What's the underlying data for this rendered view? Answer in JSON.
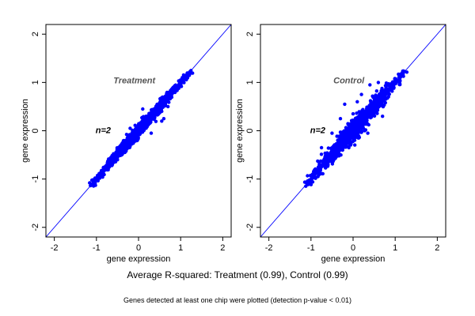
{
  "chart_data": [
    {
      "type": "scatter",
      "title": "Treatment",
      "annotation": "n=2",
      "xlabel": "gene expression",
      "ylabel": "gene expression",
      "xlim": [
        -2.2,
        2.2
      ],
      "ylim": [
        -2.2,
        2.2
      ],
      "xticks": [
        -2,
        -1,
        0,
        1,
        2
      ],
      "yticks": [
        -2,
        -1,
        0,
        1,
        2
      ],
      "reference_line": "y = x",
      "point_color": "#0000ff",
      "line_color": "#0000ff",
      "points_summary": {
        "x_range": [
          -1.15,
          1.25
        ],
        "y_range": [
          -1.15,
          1.2
        ],
        "spread": 0.07
      },
      "outliers": [
        [
          0.55,
          0.2
        ],
        [
          0.6,
          0.25
        ],
        [
          0.3,
          -0.05
        ],
        [
          -0.4,
          -0.5
        ],
        [
          -0.7,
          -0.6
        ],
        [
          0.1,
          0.45
        ],
        [
          -0.2,
          0.05
        ],
        [
          0.7,
          0.5
        ]
      ]
    },
    {
      "type": "scatter",
      "title": "Control",
      "annotation": "n=2",
      "xlabel": "gene expression",
      "ylabel": "gene expression",
      "xlim": [
        -2.2,
        2.2
      ],
      "ylim": [
        -2.2,
        2.2
      ],
      "xticks": [
        -2,
        -1,
        0,
        1,
        2
      ],
      "yticks": [
        -2,
        -1,
        0,
        1,
        2
      ],
      "reference_line": "y = x",
      "point_color": "#0000ff",
      "line_color": "#0000ff",
      "points_summary": {
        "x_range": [
          -1.15,
          1.25
        ],
        "y_range": [
          -1.15,
          1.2
        ],
        "spread": 0.11
      },
      "outliers": [
        [
          -0.2,
          0.55
        ],
        [
          0.1,
          0.6
        ],
        [
          0.4,
          0.95
        ],
        [
          0.6,
          1.0
        ],
        [
          0.0,
          0.35
        ],
        [
          -0.5,
          -0.05
        ],
        [
          -0.3,
          0.25
        ],
        [
          0.35,
          -0.05
        ],
        [
          0.7,
          0.3
        ],
        [
          -0.75,
          -0.35
        ],
        [
          0.2,
          0.75
        ],
        [
          -0.1,
          -0.35
        ]
      ]
    }
  ],
  "caption": "Average R-squared: Treatment (0.99), Control (0.99)",
  "footnote": "Genes detected at least one chip were plotted (detection p-value < 0.01)"
}
